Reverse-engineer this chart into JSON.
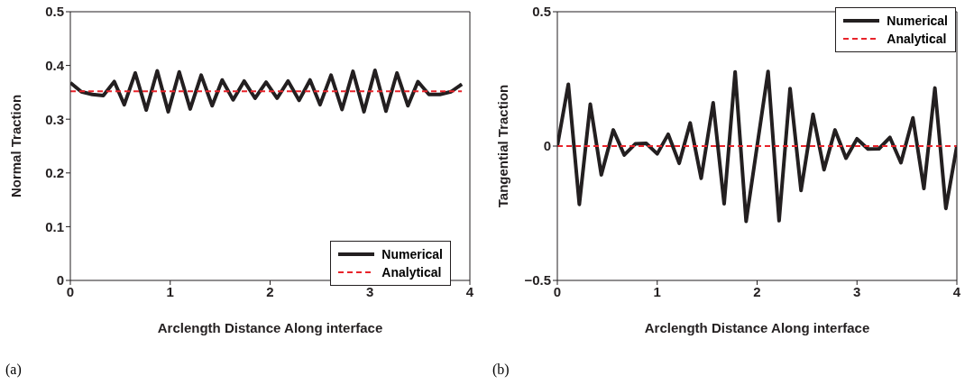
{
  "chart_data": [
    {
      "type": "line",
      "xlabel": "Arclength Distance Along interface",
      "ylabel": "Normal Traction",
      "annotations": [
        "(a)"
      ],
      "xlim": [
        0,
        4
      ],
      "xticks": [
        0,
        1,
        2,
        3,
        4
      ],
      "ylim": [
        0,
        0.5
      ],
      "yticks": [
        0,
        0.1,
        0.2,
        0.3,
        0.4,
        0.5
      ],
      "legend": "bottom right",
      "series": [
        {
          "name": "Numerical",
          "color": "#231f20",
          "line_style": "solid",
          "x": [
            0,
            0.11,
            0.22,
            0.33,
            0.44,
            0.54,
            0.65,
            0.76,
            0.87,
            0.98,
            1.09,
            1.2,
            1.31,
            1.42,
            1.52,
            1.63,
            1.74,
            1.85,
            1.96,
            2.07,
            2.18,
            2.29,
            2.4,
            2.5,
            2.61,
            2.72,
            2.83,
            2.94,
            3.05,
            3.16,
            3.27,
            3.38,
            3.48,
            3.59,
            3.7,
            3.81,
            3.92
          ],
          "values": [
            0.368,
            0.351,
            0.346,
            0.344,
            0.37,
            0.327,
            0.386,
            0.317,
            0.39,
            0.314,
            0.388,
            0.319,
            0.382,
            0.325,
            0.373,
            0.336,
            0.371,
            0.339,
            0.369,
            0.339,
            0.371,
            0.335,
            0.373,
            0.327,
            0.382,
            0.318,
            0.389,
            0.314,
            0.391,
            0.315,
            0.386,
            0.325,
            0.37,
            0.346,
            0.346,
            0.351,
            0.365
          ]
        },
        {
          "name": "Analytical",
          "color": "#e8242b",
          "line_style": "dashed",
          "x": [
            0,
            3.92
          ],
          "values": [
            0.352,
            0.352
          ]
        }
      ]
    },
    {
      "type": "line",
      "xlabel": "Arclength Distance Along interface",
      "ylabel": "Tangential Traction",
      "annotations": [
        "(b)"
      ],
      "xlim": [
        0,
        4
      ],
      "xticks": [
        0,
        1,
        2,
        3,
        4
      ],
      "ylim": [
        -0.5,
        0.5
      ],
      "yticks": [
        {
          "value": -0.5,
          "label": "−0.5"
        },
        0,
        0.5
      ],
      "legend": "top right",
      "series": [
        {
          "name": "Numerical",
          "color": "#231f20",
          "line_style": "solid",
          "x": [
            0,
            0.11,
            0.22,
            0.33,
            0.44,
            0.56,
            0.67,
            0.78,
            0.89,
            1.0,
            1.11,
            1.22,
            1.33,
            1.44,
            1.56,
            1.67,
            1.78,
            1.89,
            2.0,
            2.11,
            2.22,
            2.33,
            2.44,
            2.56,
            2.67,
            2.78,
            2.89,
            3.0,
            3.11,
            3.22,
            3.33,
            3.44,
            3.56,
            3.67,
            3.78,
            3.89,
            4.0
          ],
          "values": [
            0,
            0.23,
            -0.217,
            0.156,
            -0.107,
            0.06,
            -0.033,
            0.008,
            0.01,
            -0.029,
            0.044,
            -0.064,
            0.086,
            -0.12,
            0.161,
            -0.215,
            0.276,
            -0.28,
            0,
            0.278,
            -0.278,
            0.214,
            -0.165,
            0.118,
            -0.088,
            0.06,
            -0.045,
            0.027,
            -0.011,
            -0.01,
            0.032,
            -0.062,
            0.105,
            -0.158,
            0.216,
            -0.232,
            0
          ]
        },
        {
          "name": "Analytical",
          "color": "#e8242b",
          "line_style": "dashed",
          "x": [
            0,
            4
          ],
          "values": [
            0,
            0
          ]
        }
      ]
    }
  ]
}
